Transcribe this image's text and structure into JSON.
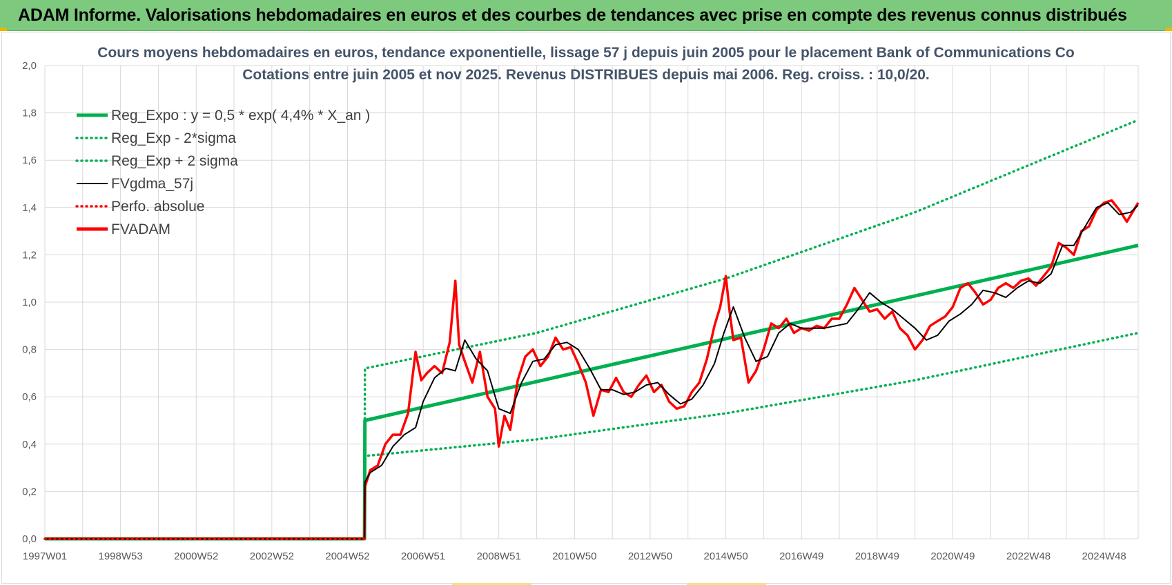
{
  "banner": {
    "title": "ADAM Informe. Valorisations hebdomadaires en euros et des courbes de tendances avec prise en compte des revenus connus distribués"
  },
  "chart_data": {
    "type": "line",
    "title": "Cours moyens hebdomadaires en euros, tendance exponentielle, lissage 57 j depuis juin 2005 pour le placement Bank of Communications Co",
    "subtitle": "Cotations entre juin 2005 et nov 2025. Revenus DISTRIBUES depuis mai 2006. Reg. croiss. : 10,0/20.",
    "xlabel": "",
    "ylabel": "",
    "x_range": [
      "1997W01",
      "2025W46"
    ],
    "ylim": [
      0,
      2.0
    ],
    "y_ticks": [
      "0,0",
      "0,2",
      "0,4",
      "0,6",
      "0,8",
      "1,0",
      "1,2",
      "1,4",
      "1,6",
      "1,8",
      "2,0"
    ],
    "x_ticks": [
      "1997W01",
      "1998W53",
      "2000W52",
      "2002W52",
      "2004W52",
      "2006W51",
      "2008W51",
      "2010W50",
      "2012W50",
      "2014W50",
      "2016W49",
      "2018W49",
      "2020W49",
      "2022W48",
      "2024W48"
    ],
    "grid": true,
    "legend_position": "top-left",
    "colors": {
      "green": "#00b050",
      "black": "#000000",
      "red": "#ff0000"
    },
    "series": [
      {
        "name": "Reg_Expo : y = 0,5 * exp( 4,4% *  X_an )",
        "style": "solid-thick",
        "color": "#00b050",
        "x": [
          1997.0,
          2005.45,
          2005.46,
          2025.9
        ],
        "y": [
          0.0,
          0.0,
          0.5,
          1.24
        ]
      },
      {
        "name": "Reg_Exp - 2*sigma",
        "style": "dotted",
        "color": "#00b050",
        "x": [
          1997.0,
          2005.45,
          2005.46,
          2010,
          2015,
          2020,
          2025.9
        ],
        "y": [
          0.0,
          0.0,
          0.35,
          0.42,
          0.53,
          0.67,
          0.87
        ]
      },
      {
        "name": "Reg_Exp + 2 sigma",
        "style": "dotted",
        "color": "#00b050",
        "x": [
          1997.0,
          2005.45,
          2005.46,
          2010,
          2015,
          2020,
          2025.9
        ],
        "y": [
          0.0,
          0.0,
          0.72,
          0.87,
          1.1,
          1.38,
          1.77
        ]
      },
      {
        "name": "FVgdma_57j",
        "style": "solid",
        "color": "#000000",
        "x": [
          1997.0,
          2005.45,
          2005.46,
          2005.6,
          2005.9,
          2006.2,
          2006.5,
          2006.8,
          2007.0,
          2007.3,
          2007.6,
          2007.85,
          2008.1,
          2008.4,
          2008.7,
          2009.0,
          2009.3,
          2009.6,
          2009.9,
          2010.2,
          2010.5,
          2010.8,
          2011.1,
          2011.4,
          2011.7,
          2012.0,
          2012.3,
          2012.6,
          2012.9,
          2013.2,
          2013.5,
          2013.8,
          2014.1,
          2014.4,
          2014.7,
          2014.95,
          2015.2,
          2015.5,
          2015.8,
          2016.1,
          2016.4,
          2016.7,
          2017.0,
          2017.3,
          2017.6,
          2017.9,
          2018.2,
          2018.5,
          2018.8,
          2019.1,
          2019.4,
          2019.7,
          2020.0,
          2020.3,
          2020.6,
          2020.9,
          2021.2,
          2021.5,
          2021.8,
          2022.1,
          2022.4,
          2022.7,
          2023.0,
          2023.3,
          2023.6,
          2023.9,
          2024.2,
          2024.5,
          2024.8,
          2025.1,
          2025.4,
          2025.7,
          2025.9
        ],
        "y": [
          0.0,
          0.0,
          0.24,
          0.28,
          0.31,
          0.39,
          0.44,
          0.47,
          0.58,
          0.68,
          0.72,
          0.71,
          0.84,
          0.76,
          0.71,
          0.55,
          0.53,
          0.66,
          0.75,
          0.76,
          0.82,
          0.83,
          0.8,
          0.72,
          0.63,
          0.63,
          0.61,
          0.62,
          0.65,
          0.66,
          0.61,
          0.57,
          0.59,
          0.65,
          0.74,
          0.87,
          0.98,
          0.85,
          0.75,
          0.77,
          0.87,
          0.91,
          0.89,
          0.89,
          0.89,
          0.9,
          0.91,
          0.97,
          1.04,
          1.0,
          0.97,
          0.93,
          0.89,
          0.84,
          0.86,
          0.92,
          0.95,
          0.99,
          1.05,
          1.04,
          1.02,
          1.06,
          1.09,
          1.08,
          1.12,
          1.24,
          1.24,
          1.32,
          1.4,
          1.42,
          1.37,
          1.38,
          1.41
        ]
      },
      {
        "name": "Perfo. absolue",
        "style": "dotted",
        "color": "#ff0000",
        "x": [
          1997.0,
          2005.45
        ],
        "y": [
          0.0,
          0.0
        ]
      },
      {
        "name": "FVADAM",
        "style": "solid-thick",
        "color": "#ff0000",
        "x": [
          1997.0,
          2005.45,
          2005.46,
          2005.6,
          2005.8,
          2006.0,
          2006.2,
          2006.4,
          2006.6,
          2006.8,
          2006.95,
          2007.1,
          2007.3,
          2007.5,
          2007.7,
          2007.85,
          2007.95,
          2008.1,
          2008.3,
          2008.5,
          2008.7,
          2008.9,
          2009.0,
          2009.15,
          2009.3,
          2009.5,
          2009.7,
          2009.9,
          2010.1,
          2010.3,
          2010.5,
          2010.7,
          2010.9,
          2011.1,
          2011.3,
          2011.5,
          2011.7,
          2011.9,
          2012.1,
          2012.3,
          2012.5,
          2012.7,
          2012.9,
          2013.1,
          2013.3,
          2013.5,
          2013.7,
          2013.9,
          2014.1,
          2014.3,
          2014.5,
          2014.7,
          2014.85,
          2015.0,
          2015.1,
          2015.2,
          2015.4,
          2015.6,
          2015.8,
          2016.0,
          2016.2,
          2016.4,
          2016.6,
          2016.8,
          2017.0,
          2017.2,
          2017.4,
          2017.6,
          2017.8,
          2018.0,
          2018.2,
          2018.4,
          2018.6,
          2018.8,
          2019.0,
          2019.2,
          2019.4,
          2019.6,
          2019.8,
          2020.0,
          2020.2,
          2020.4,
          2020.6,
          2020.8,
          2021.0,
          2021.2,
          2021.4,
          2021.6,
          2021.8,
          2022.0,
          2022.2,
          2022.4,
          2022.6,
          2022.8,
          2023.0,
          2023.2,
          2023.4,
          2023.6,
          2023.8,
          2024.0,
          2024.2,
          2024.4,
          2024.6,
          2024.8,
          2025.0,
          2025.2,
          2025.4,
          2025.6,
          2025.9
        ],
        "y": [
          0.0,
          0.0,
          0.22,
          0.29,
          0.31,
          0.4,
          0.44,
          0.44,
          0.53,
          0.79,
          0.67,
          0.7,
          0.73,
          0.7,
          0.83,
          1.09,
          0.82,
          0.75,
          0.66,
          0.79,
          0.6,
          0.55,
          0.39,
          0.52,
          0.46,
          0.67,
          0.77,
          0.8,
          0.73,
          0.77,
          0.85,
          0.8,
          0.81,
          0.74,
          0.66,
          0.52,
          0.63,
          0.62,
          0.68,
          0.62,
          0.6,
          0.65,
          0.69,
          0.62,
          0.65,
          0.58,
          0.55,
          0.56,
          0.62,
          0.66,
          0.76,
          0.9,
          0.98,
          1.11,
          0.96,
          0.84,
          0.85,
          0.66,
          0.71,
          0.8,
          0.91,
          0.89,
          0.93,
          0.87,
          0.89,
          0.88,
          0.9,
          0.89,
          0.93,
          0.93,
          0.99,
          1.06,
          1.01,
          0.96,
          0.97,
          0.93,
          0.96,
          0.89,
          0.86,
          0.8,
          0.84,
          0.9,
          0.92,
          0.94,
          0.98,
          1.06,
          1.08,
          1.04,
          0.99,
          1.01,
          1.06,
          1.08,
          1.06,
          1.09,
          1.1,
          1.07,
          1.11,
          1.15,
          1.25,
          1.23,
          1.2,
          1.3,
          1.32,
          1.39,
          1.42,
          1.43,
          1.39,
          1.34,
          1.42
        ]
      }
    ]
  }
}
